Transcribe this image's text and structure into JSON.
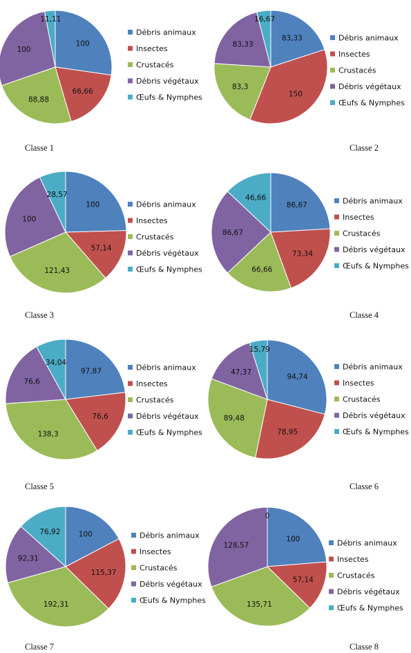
{
  "legend_colors": [
    "#4f81bd",
    "#c0504d",
    "#9bbb59",
    "#8064a2",
    "#4bacc6"
  ],
  "chart_data": [
    {
      "type": "pie",
      "caption": "Classe 1",
      "categories": [
        "Débris animaux",
        "Insectes",
        "Crustacés",
        "Débris végétaux",
        "Œufs & Nymphes"
      ],
      "values": [
        100,
        66.66,
        88.88,
        100,
        11.11
      ],
      "labels": [
        "100",
        "66,66",
        "88,88",
        "100",
        "11,11"
      ]
    },
    {
      "type": "pie",
      "caption": "Classe 2",
      "categories": [
        "Débris animaux",
        "Insectes",
        "Crustacés",
        "Débris végétaux",
        "Œufs & Nymphes"
      ],
      "values": [
        83.33,
        150,
        83.3,
        83.33,
        16.67
      ],
      "labels": [
        "83,33",
        "150",
        "83,3",
        "83,33",
        "16,67"
      ]
    },
    {
      "type": "pie",
      "caption": "Classe 3",
      "categories": [
        "Débris animaux",
        "Insectes",
        "Crustacés",
        "Débris végétaux",
        "Œufs & Nymphes"
      ],
      "values": [
        100,
        57.14,
        121.43,
        100,
        28.57
      ],
      "labels": [
        "100",
        "57,14",
        "121,43",
        "100",
        "28,57"
      ]
    },
    {
      "type": "pie",
      "caption": "Classe 4",
      "categories": [
        "Débris animaux",
        "Insectes",
        "Crustacés",
        "Débris végétaux",
        "Œufs & Nymphes"
      ],
      "values": [
        86.67,
        73.34,
        66.66,
        86.67,
        46.66
      ],
      "labels": [
        "86,67",
        "73,34",
        "66,66",
        "86,67",
        "46,66"
      ]
    },
    {
      "type": "pie",
      "caption": "Classe 5",
      "categories": [
        "Débris animaux",
        "Insectes",
        "Crustacés",
        "Débris végétaux",
        "Œufs & Nymphes"
      ],
      "values": [
        97.87,
        76.6,
        138.3,
        76.6,
        34.04
      ],
      "labels": [
        "97,87",
        "76,6",
        "138,3",
        "76,6",
        "34,04"
      ]
    },
    {
      "type": "pie",
      "caption": "Classe 6",
      "categories": [
        "Débris animaux",
        "Insectes",
        "Crustacés",
        "Débris végétaux",
        "Œufs & Nymphes"
      ],
      "values": [
        94.74,
        78.95,
        89.48,
        47.37,
        15.79
      ],
      "labels": [
        "94,74",
        "78,95",
        "89,48",
        "47,37",
        "15,79"
      ]
    },
    {
      "type": "pie",
      "caption": "Classe 7",
      "categories": [
        "Débris animaux",
        "Insectes",
        "Crustacés",
        "Débris végétaux",
        "Œufs & Nymphes"
      ],
      "values": [
        100,
        115.37,
        192.31,
        92.31,
        76.92
      ],
      "labels": [
        "100",
        "115,37",
        "192,31",
        "92,31",
        "76,92"
      ]
    },
    {
      "type": "pie",
      "caption": "Classe 8",
      "categories": [
        "Débris animaux",
        "Insectes",
        "Crustacés",
        "Débris végétaux",
        "Œufs & Nymphes"
      ],
      "values": [
        100,
        57.14,
        135.71,
        128.57,
        0
      ],
      "labels": [
        "100",
        "57,14",
        "135,71",
        "128,57",
        "0"
      ]
    }
  ]
}
